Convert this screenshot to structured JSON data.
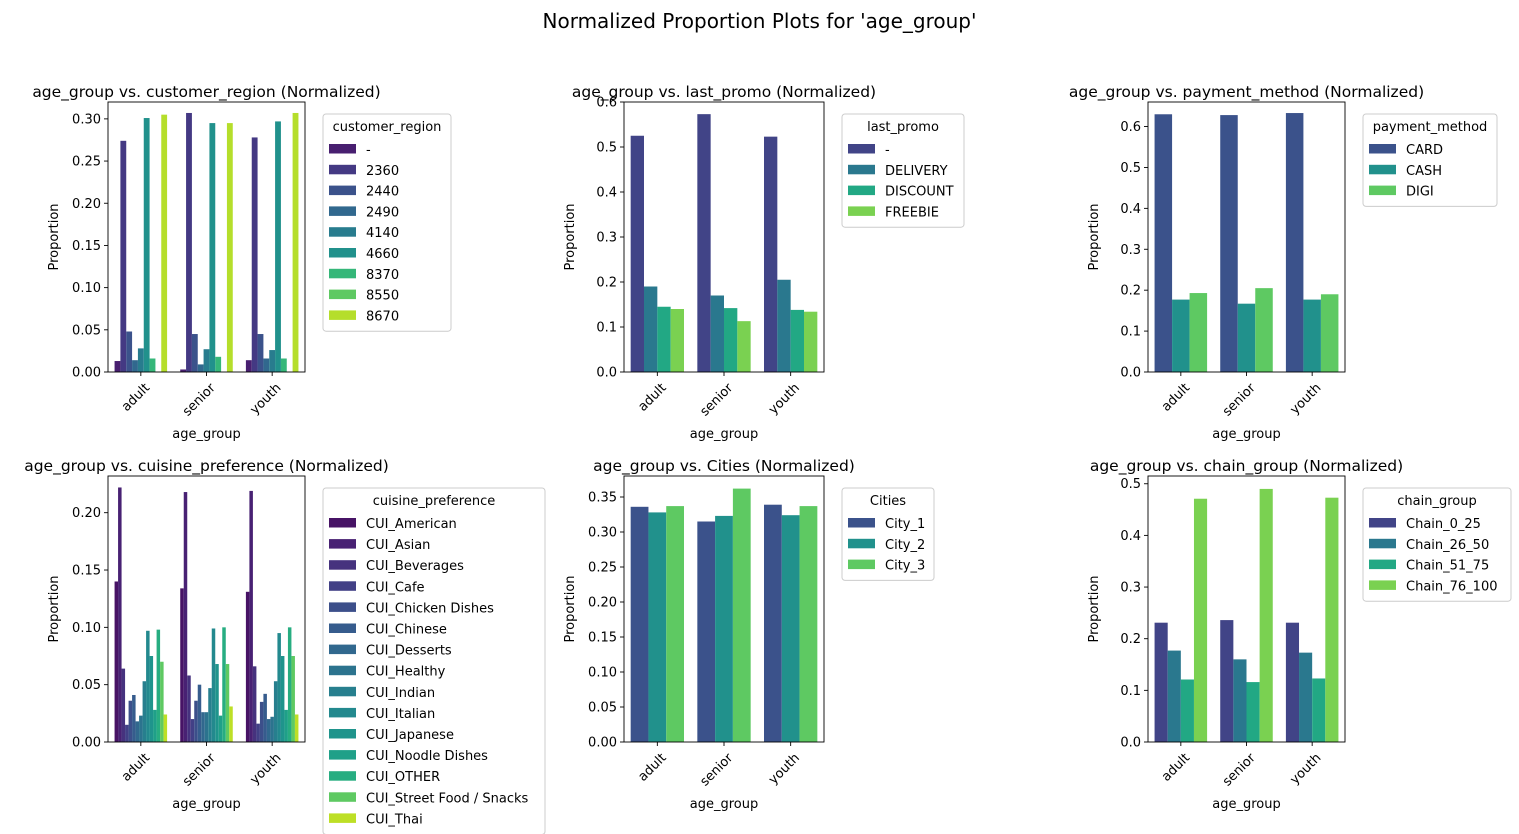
{
  "figure": {
    "title": "Normalized Proportion Plots for 'age_group'"
  },
  "chart_data": [
    {
      "type": "bar",
      "title": "age_group vs. customer_region (Normalized)",
      "xlabel": "age_group",
      "ylabel": "Proportion",
      "categories": [
        "adult",
        "senior",
        "youth"
      ],
      "ylim": [
        0,
        0.32
      ],
      "yticks": [
        0.0,
        0.05,
        0.1,
        0.15,
        0.2,
        0.25,
        0.3
      ],
      "ytick_labels": [
        "0.00",
        "0.05",
        "0.10",
        "0.15",
        "0.20",
        "0.25",
        "0.30"
      ],
      "legend": {
        "title": "customer_region",
        "placement": "outside-right"
      },
      "series": [
        {
          "name": "-",
          "color": "#481f70",
          "values": [
            0.013,
            0.003,
            0.014
          ]
        },
        {
          "name": "2360",
          "color": "#443983",
          "values": [
            0.274,
            0.307,
            0.278
          ]
        },
        {
          "name": "2440",
          "color": "#3b528b",
          "values": [
            0.048,
            0.045,
            0.045
          ]
        },
        {
          "name": "2490",
          "color": "#31688e",
          "values": [
            0.014,
            0.009,
            0.016
          ]
        },
        {
          "name": "4140",
          "color": "#287c8e",
          "values": [
            0.028,
            0.027,
            0.026
          ]
        },
        {
          "name": "4660",
          "color": "#21918c",
          "values": [
            0.301,
            0.295,
            0.297
          ]
        },
        {
          "name": "8370",
          "color": "#35b779",
          "values": [
            0.016,
            0.018,
            0.016
          ]
        },
        {
          "name": "8550",
          "color": "#5ec962",
          "values": [
            0.0,
            0.0,
            0.0
          ]
        },
        {
          "name": "8670",
          "color": "#b5de2b",
          "values": [
            0.305,
            0.295,
            0.307
          ]
        }
      ]
    },
    {
      "type": "bar",
      "title": "age_group vs. last_promo (Normalized)",
      "xlabel": "age_group",
      "ylabel": "Proportion",
      "categories": [
        "adult",
        "senior",
        "youth"
      ],
      "ylim": [
        0,
        0.6
      ],
      "yticks": [
        0.0,
        0.1,
        0.2,
        0.3,
        0.4,
        0.5,
        0.6
      ],
      "ytick_labels": [
        "0.0",
        "0.1",
        "0.2",
        "0.3",
        "0.4",
        "0.5",
        "0.6"
      ],
      "legend": {
        "title": "last_promo",
        "placement": "outside-right"
      },
      "series": [
        {
          "name": "-",
          "color": "#414487",
          "values": [
            0.525,
            0.573,
            0.523
          ]
        },
        {
          "name": "DELIVERY",
          "color": "#2a788e",
          "values": [
            0.19,
            0.17,
            0.205
          ]
        },
        {
          "name": "DISCOUNT",
          "color": "#22a884",
          "values": [
            0.145,
            0.142,
            0.138
          ]
        },
        {
          "name": "FREEBIE",
          "color": "#7ad151",
          "values": [
            0.14,
            0.113,
            0.134
          ]
        }
      ]
    },
    {
      "type": "bar",
      "title": "age_group vs. payment_method (Normalized)",
      "xlabel": "age_group",
      "ylabel": "Proportion",
      "categories": [
        "adult",
        "senior",
        "youth"
      ],
      "ylim": [
        0,
        0.66
      ],
      "yticks": [
        0.0,
        0.1,
        0.2,
        0.3,
        0.4,
        0.5,
        0.6
      ],
      "ytick_labels": [
        "0.0",
        "0.1",
        "0.2",
        "0.3",
        "0.4",
        "0.5",
        "0.6"
      ],
      "legend": {
        "title": "payment_method",
        "placement": "outside-right"
      },
      "series": [
        {
          "name": "CARD",
          "color": "#3b528b",
          "values": [
            0.63,
            0.628,
            0.633
          ]
        },
        {
          "name": "CASH",
          "color": "#21918c",
          "values": [
            0.177,
            0.167,
            0.177
          ]
        },
        {
          "name": "DIGI",
          "color": "#5ec962",
          "values": [
            0.193,
            0.205,
            0.19
          ]
        }
      ]
    },
    {
      "type": "bar",
      "title": "age_group vs. cuisine_preference (Normalized)",
      "xlabel": "age_group",
      "ylabel": "Proportion",
      "categories": [
        "adult",
        "senior",
        "youth"
      ],
      "ylim": [
        0,
        0.232
      ],
      "yticks": [
        0.0,
        0.05,
        0.1,
        0.15,
        0.2
      ],
      "ytick_labels": [
        "0.00",
        "0.05",
        "0.10",
        "0.15",
        "0.20"
      ],
      "legend": {
        "title": "cuisine_preference",
        "placement": "outside-right"
      },
      "series": [
        {
          "name": "CUI_American",
          "color": "#471365",
          "values": [
            0.14,
            0.134,
            0.131
          ]
        },
        {
          "name": "CUI_Asian",
          "color": "#482173",
          "values": [
            0.222,
            0.218,
            0.219
          ]
        },
        {
          "name": "CUI_Beverages",
          "color": "#46327e",
          "values": [
            0.064,
            0.058,
            0.066
          ]
        },
        {
          "name": "CUI_Cafe",
          "color": "#424086",
          "values": [
            0.015,
            0.02,
            0.016
          ]
        },
        {
          "name": "CUI_Chicken Dishes",
          "color": "#3c4f8a",
          "values": [
            0.036,
            0.036,
            0.035
          ]
        },
        {
          "name": "CUI_Chinese",
          "color": "#365c8d",
          "values": [
            0.041,
            0.05,
            0.042
          ]
        },
        {
          "name": "CUI_Desserts",
          "color": "#31688e",
          "values": [
            0.018,
            0.026,
            0.02
          ]
        },
        {
          "name": "CUI_Healthy",
          "color": "#2c738e",
          "values": [
            0.023,
            0.026,
            0.022
          ]
        },
        {
          "name": "CUI_Indian",
          "color": "#277f8e",
          "values": [
            0.053,
            0.047,
            0.053
          ]
        },
        {
          "name": "CUI_Italian",
          "color": "#23898e",
          "values": [
            0.097,
            0.099,
            0.095
          ]
        },
        {
          "name": "CUI_Japanese",
          "color": "#1f948c",
          "values": [
            0.075,
            0.068,
            0.075
          ]
        },
        {
          "name": "CUI_Noodle Dishes",
          "color": "#1fa088",
          "values": [
            0.028,
            0.023,
            0.028
          ]
        },
        {
          "name": "CUI_OTHER",
          "color": "#27ad81",
          "values": [
            0.098,
            0.1,
            0.1
          ]
        },
        {
          "name": "CUI_Street Food / Snacks",
          "color": "#5ec962",
          "values": [
            0.07,
            0.068,
            0.075
          ]
        },
        {
          "name": "CUI_Thai",
          "color": "#bddf26",
          "values": [
            0.024,
            0.031,
            0.024
          ]
        }
      ]
    },
    {
      "type": "bar",
      "title": "age_group vs. Cities (Normalized)",
      "xlabel": "age_group",
      "ylabel": "Proportion",
      "categories": [
        "adult",
        "senior",
        "youth"
      ],
      "ylim": [
        0,
        0.38
      ],
      "yticks": [
        0.0,
        0.05,
        0.1,
        0.15,
        0.2,
        0.25,
        0.3,
        0.35
      ],
      "ytick_labels": [
        "0.00",
        "0.05",
        "0.10",
        "0.15",
        "0.20",
        "0.25",
        "0.30",
        "0.35"
      ],
      "legend": {
        "title": "Cities",
        "placement": "outside-right"
      },
      "series": [
        {
          "name": "City_1",
          "color": "#3b528b",
          "values": [
            0.336,
            0.315,
            0.339
          ]
        },
        {
          "name": "City_2",
          "color": "#21918c",
          "values": [
            0.328,
            0.323,
            0.324
          ]
        },
        {
          "name": "City_3",
          "color": "#5ec962",
          "values": [
            0.337,
            0.362,
            0.337
          ]
        }
      ]
    },
    {
      "type": "bar",
      "title": "age_group vs. chain_group (Normalized)",
      "xlabel": "age_group",
      "ylabel": "Proportion",
      "categories": [
        "adult",
        "senior",
        "youth"
      ],
      "ylim": [
        0,
        0.515
      ],
      "yticks": [
        0.0,
        0.1,
        0.2,
        0.3,
        0.4,
        0.5
      ],
      "ytick_labels": [
        "0.0",
        "0.1",
        "0.2",
        "0.3",
        "0.4",
        "0.5"
      ],
      "legend": {
        "title": "chain_group",
        "placement": "outside-right"
      },
      "series": [
        {
          "name": "Chain_0_25",
          "color": "#414487",
          "values": [
            0.231,
            0.236,
            0.231
          ]
        },
        {
          "name": "Chain_26_50",
          "color": "#2a788e",
          "values": [
            0.177,
            0.16,
            0.173
          ]
        },
        {
          "name": "Chain_51_75",
          "color": "#22a884",
          "values": [
            0.121,
            0.116,
            0.123
          ]
        },
        {
          "name": "Chain_76_100",
          "color": "#7ad151",
          "values": [
            0.471,
            0.49,
            0.473
          ]
        }
      ]
    }
  ]
}
